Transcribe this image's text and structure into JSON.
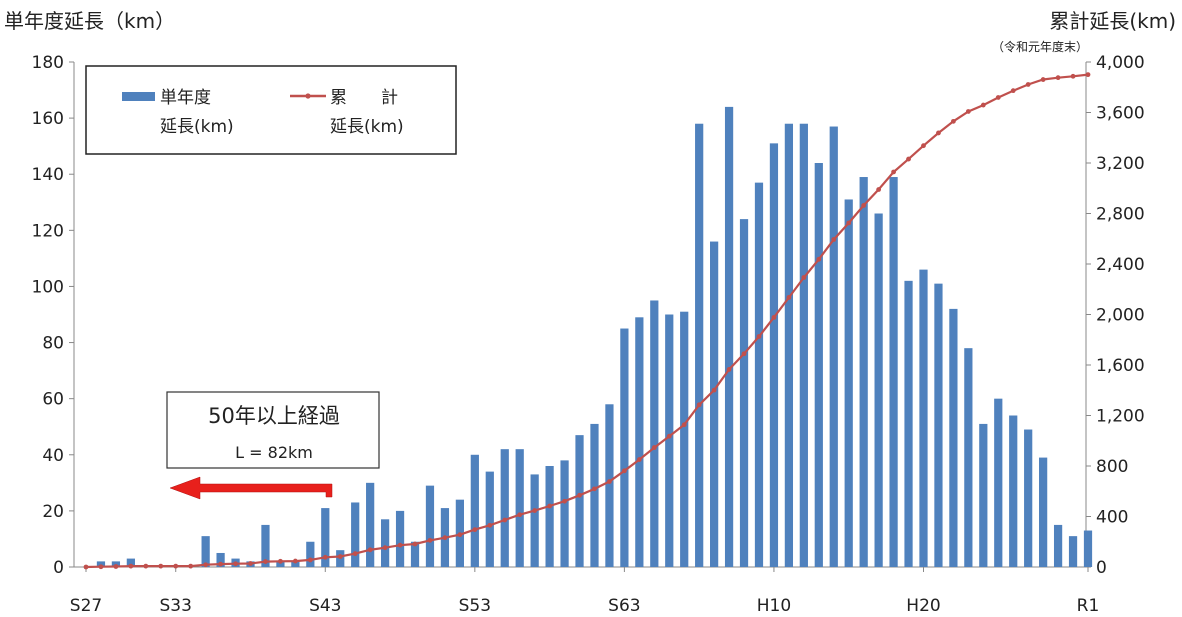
{
  "chart_data": {
    "type": "bar+line",
    "left_axis_title": "単年度延長（km）",
    "right_axis_title": "累計延長(km)",
    "right_axis_note": "（令和元年度末）",
    "left_ticks": [
      "0",
      "20",
      "40",
      "60",
      "80",
      "100",
      "120",
      "140",
      "160",
      "180"
    ],
    "right_ticks": [
      "0",
      "400",
      "800",
      "1,200",
      "1,600",
      "2,000",
      "2,400",
      "2,800",
      "3,200",
      "3,600",
      "4,000"
    ],
    "x_tick_labels": [
      "S27",
      "S33",
      "S43",
      "S53",
      "S63",
      "H10",
      "H20",
      "R1"
    ],
    "ylim_left": [
      0,
      180
    ],
    "ylim_right": [
      0,
      4000
    ],
    "legend": {
      "bar_label_line1": "単年度",
      "bar_label_line2": "延長(km)",
      "line_label_line1": "累　　計",
      "line_label_line2": "延長(km)"
    },
    "annotation": {
      "line1": "50年以上経過",
      "line2": "L = 82km"
    },
    "colors": {
      "bar": "#4f81bd",
      "line": "#c0504d",
      "arrow": "#e8201c"
    },
    "categories": [
      "S27",
      "S28",
      "S29",
      "S30",
      "S31",
      "S32",
      "S33",
      "S34",
      "S35",
      "S36",
      "S37",
      "S38",
      "S39",
      "S40",
      "S41",
      "S42",
      "S43",
      "S44",
      "S45",
      "S46",
      "S47",
      "S48",
      "S49",
      "S50",
      "S51",
      "S52",
      "S53",
      "S54",
      "S55",
      "S56",
      "S57",
      "S58",
      "S59",
      "S60",
      "S61",
      "S62",
      "S63",
      "H1",
      "H2",
      "H3",
      "H4",
      "H5",
      "H6",
      "H7",
      "H8",
      "H9",
      "H10",
      "H11",
      "H12",
      "H13",
      "H14",
      "H15",
      "H16",
      "H17",
      "H18",
      "H19",
      "H20",
      "H21",
      "H22",
      "H23",
      "H24",
      "H25",
      "H26",
      "H27",
      "H28",
      "H29",
      "H30",
      "R1"
    ],
    "series": [
      {
        "name": "単年度延長(km)",
        "type": "bar",
        "axis": "left",
        "values": [
          0,
          2,
          2,
          3,
          0,
          0,
          0,
          0,
          11,
          5,
          3,
          2,
          15,
          2,
          2,
          9,
          21,
          6,
          23,
          30,
          17,
          20,
          9,
          29,
          21,
          24,
          40,
          34,
          42,
          42,
          33,
          36,
          38,
          47,
          51,
          58,
          85,
          89,
          95,
          90,
          91,
          158,
          116,
          164,
          124,
          137,
          151,
          158,
          158,
          144,
          157,
          131,
          139,
          126,
          139,
          102,
          106,
          101,
          92,
          78,
          51,
          60,
          54,
          49,
          39,
          15,
          11,
          13
        ]
      },
      {
        "name": "累計延長(km)",
        "type": "line",
        "axis": "right",
        "values": [
          0,
          2,
          4,
          7,
          7,
          7,
          7,
          7,
          18,
          23,
          26,
          28,
          43,
          45,
          47,
          56,
          77,
          83,
          106,
          136,
          153,
          173,
          182,
          211,
          232,
          256,
          296,
          330,
          372,
          414,
          447,
          483,
          521,
          568,
          619,
          677,
          762,
          851,
          946,
          1036,
          1127,
          1285,
          1401,
          1565,
          1689,
          1826,
          1977,
          2135,
          2293,
          2437,
          2594,
          2725,
          2864,
          2990,
          3129,
          3231,
          3337,
          3438,
          3530,
          3608,
          3659,
          3719,
          3773,
          3822,
          3861,
          3876,
          3887,
          3900
        ]
      }
    ]
  }
}
